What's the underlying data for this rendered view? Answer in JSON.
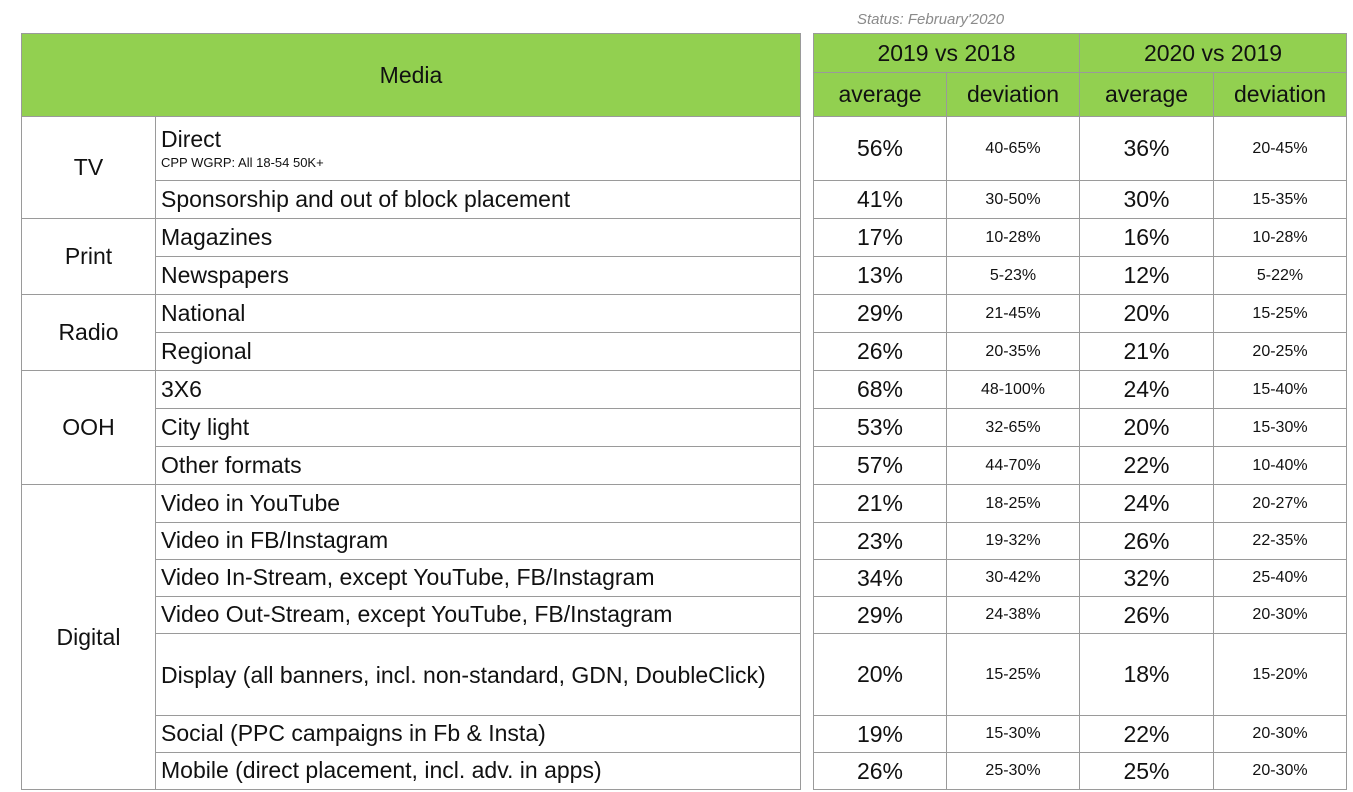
{
  "status": "Status: February'2020",
  "header": {
    "media": "Media",
    "period1": "2019 vs 2018",
    "period2": "2020 vs 2019",
    "average": "average",
    "deviation": "deviation"
  },
  "groups": [
    {
      "name": "TV",
      "rows": [
        {
          "label": "Direct",
          "note": "CPP WGRP: All 18-54 50K+",
          "avg1": "56%",
          "dev1": "40-65%",
          "avg2": "36%",
          "dev2": "20-45%"
        },
        {
          "label": "Sponsorship and out of block placement",
          "avg1": "41%",
          "dev1": "30-50%",
          "avg2": "30%",
          "dev2": "15-35%"
        }
      ]
    },
    {
      "name": "Print",
      "rows": [
        {
          "label": "Magazines",
          "avg1": "17%",
          "dev1": "10-28%",
          "avg2": "16%",
          "dev2": "10-28%"
        },
        {
          "label": "Newspapers",
          "avg1": "13%",
          "dev1": "5-23%",
          "avg2": "12%",
          "dev2": "5-22%"
        }
      ]
    },
    {
      "name": "Radio",
      "rows": [
        {
          "label": "National",
          "avg1": "29%",
          "dev1": "21-45%",
          "avg2": "20%",
          "dev2": "15-25%"
        },
        {
          "label": "Regional",
          "avg1": "26%",
          "dev1": "20-35%",
          "avg2": "21%",
          "dev2": "20-25%"
        }
      ]
    },
    {
      "name": "OOH",
      "rows": [
        {
          "label": "3X6",
          "avg1": "68%",
          "dev1": "48-100%",
          "avg2": "24%",
          "dev2": "15-40%"
        },
        {
          "label": "City light",
          "avg1": "53%",
          "dev1": "32-65%",
          "avg2": "20%",
          "dev2": "15-30%"
        },
        {
          "label": "Other formats",
          "avg1": "57%",
          "dev1": "44-70%",
          "avg2": "22%",
          "dev2": "10-40%"
        }
      ]
    },
    {
      "name": "Digital",
      "rows": [
        {
          "label": "Video in YouTube",
          "avg1": "21%",
          "dev1": "18-25%",
          "avg2": "24%",
          "dev2": "20-27%"
        },
        {
          "label": "Video in FB/Instagram",
          "avg1": "23%",
          "dev1": "19-32%",
          "avg2": "26%",
          "dev2": "22-35%"
        },
        {
          "label": "Video In-Stream, except YouTube, FB/Instagram",
          "avg1": "34%",
          "dev1": "30-42%",
          "avg2": "32%",
          "dev2": "25-40%"
        },
        {
          "label": "Video Out-Stream, except YouTube, FB/Instagram",
          "avg1": "29%",
          "dev1": "24-38%",
          "avg2": "26%",
          "dev2": "20-30%"
        },
        {
          "label": "Display (all banners, incl. non-standard, GDN, DoubleClick)",
          "avg1": "20%",
          "dev1": "15-25%",
          "avg2": "18%",
          "dev2": "15-20%"
        },
        {
          "label": "Social (PPC campaigns in Fb & Insta)",
          "avg1": "19%",
          "dev1": "15-30%",
          "avg2": "22%",
          "dev2": "20-30%"
        },
        {
          "label": "Mobile (direct placement, incl. adv. in apps)",
          "avg1": "26%",
          "dev1": "25-30%",
          "avg2": "25%",
          "dev2": "20-30%"
        }
      ]
    }
  ]
}
